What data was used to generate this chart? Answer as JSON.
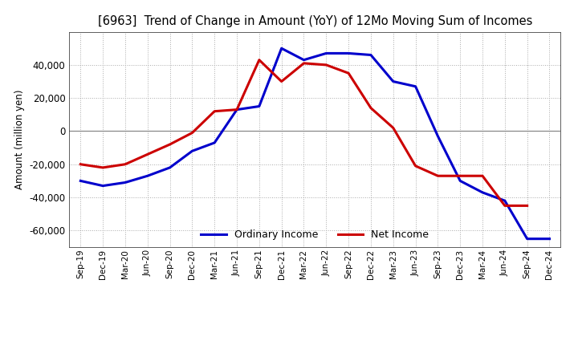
{
  "title": "[6963]  Trend of Change in Amount (YoY) of 12Mo Moving Sum of Incomes",
  "ylabel": "Amount (million yen)",
  "ylim": [
    -70000,
    60000
  ],
  "yticks": [
    -60000,
    -40000,
    -20000,
    0,
    20000,
    40000
  ],
  "background_color": "#ffffff",
  "ordinary_income_color": "#0000cc",
  "net_income_color": "#cc0000",
  "line_width": 2.2,
  "labels": [
    "Sep-19",
    "Dec-19",
    "Mar-20",
    "Jun-20",
    "Sep-20",
    "Dec-20",
    "Mar-21",
    "Jun-21",
    "Sep-21",
    "Dec-21",
    "Mar-22",
    "Jun-22",
    "Sep-22",
    "Dec-22",
    "Mar-23",
    "Jun-23",
    "Sep-23",
    "Dec-23",
    "Mar-24",
    "Jun-24",
    "Sep-24",
    "Dec-24"
  ],
  "ordinary_income": [
    -30000,
    -33000,
    -31000,
    -27000,
    -22000,
    -12000,
    -7000,
    13000,
    15000,
    50000,
    43000,
    47000,
    47000,
    46000,
    30000,
    27000,
    -3000,
    -30000,
    -37000,
    -42000,
    -65000,
    -65000
  ],
  "net_income": [
    -20000,
    -22000,
    -20000,
    -14000,
    -8000,
    -1000,
    12000,
    13000,
    43000,
    30000,
    41000,
    40000,
    35000,
    14000,
    2000,
    -21000,
    -27000,
    -27000,
    -27000,
    -45000,
    -45000,
    null
  ]
}
